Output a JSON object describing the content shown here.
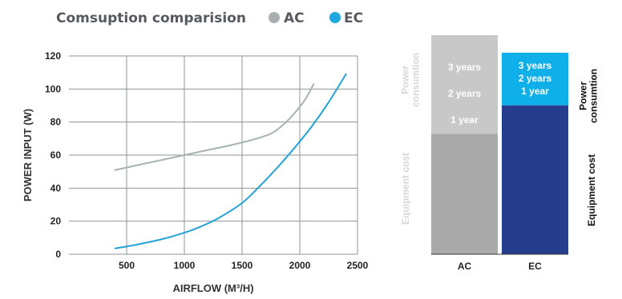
{
  "legend": {
    "title": "Comsuption comparision",
    "items": [
      {
        "label": "AC",
        "color": "#a9aeb1"
      },
      {
        "label": "EC",
        "color": "#1fa8e0"
      }
    ]
  },
  "chart_data": [
    {
      "type": "line",
      "xlabel": "AIRFLOW (M³/H)",
      "ylabel": "POWER INPUT (W)",
      "xlim": [
        0,
        2500
      ],
      "ylim": [
        0,
        120
      ],
      "xticks": [
        500,
        1000,
        1500,
        2000,
        2500
      ],
      "yticks": [
        0,
        20,
        40,
        60,
        80,
        100,
        120
      ],
      "grid": true,
      "series": [
        {
          "name": "AC",
          "color": "#a7b2b5",
          "points": [
            [
              400,
              51
            ],
            [
              600,
              54
            ],
            [
              800,
              57
            ],
            [
              1000,
              60
            ],
            [
              1200,
              63
            ],
            [
              1400,
              66
            ],
            [
              1600,
              69.5
            ],
            [
              1750,
              73
            ],
            [
              1850,
              78
            ],
            [
              1950,
              85
            ],
            [
              2050,
              94
            ],
            [
              2120,
              103
            ]
          ]
        },
        {
          "name": "EC",
          "color": "#23a3d6",
          "points": [
            [
              400,
              3.5
            ],
            [
              600,
              6
            ],
            [
              800,
              9
            ],
            [
              1000,
              13
            ],
            [
              1150,
              17
            ],
            [
              1300,
              22
            ],
            [
              1500,
              31
            ],
            [
              1650,
              41
            ],
            [
              1800,
              52
            ],
            [
              1950,
              64
            ],
            [
              2100,
              77
            ],
            [
              2250,
              92
            ],
            [
              2400,
              109
            ]
          ]
        }
      ]
    },
    {
      "type": "bar",
      "stacked": true,
      "categories": [
        "AC",
        "EC"
      ],
      "scale_max": 100,
      "segments": [
        {
          "category": "AC",
          "component": "Equipment cost",
          "value": 55,
          "color": "#a9a9a9"
        },
        {
          "category": "AC",
          "component": "Power consumtion",
          "value": 45,
          "color": "#c8c8c8",
          "labels": [
            "3 years",
            "2 years",
            "1 year"
          ]
        },
        {
          "category": "EC",
          "component": "Equipment cost",
          "value": 68,
          "color": "#253d8c"
        },
        {
          "category": "EC",
          "component": "Power consumtion",
          "value": 24,
          "color": "#0fb0ea",
          "labels": [
            "3 years",
            "2 years",
            "1 year"
          ]
        }
      ],
      "side_labels": {
        "AC": {
          "power": [
            "Power",
            "consumtion"
          ],
          "equipment": "Equipment cost",
          "color": "#d6d6d6"
        },
        "EC": {
          "power": [
            "Power",
            "consumtion"
          ],
          "equipment": "Equipment cost",
          "color": "#111111"
        }
      }
    }
  ]
}
